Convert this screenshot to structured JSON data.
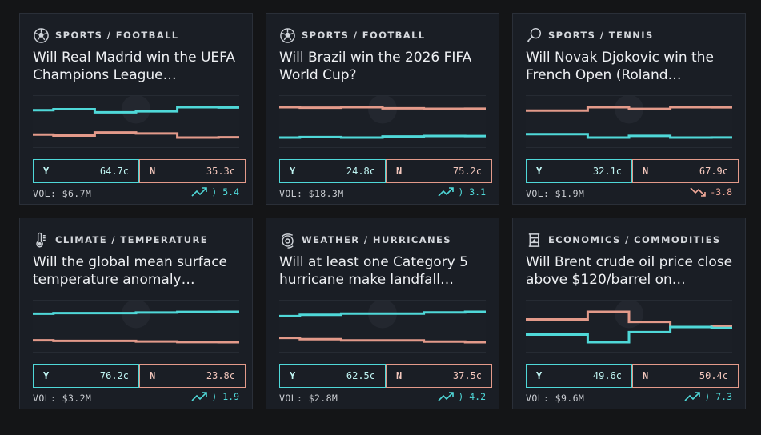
{
  "colors": {
    "background": "#141517",
    "card": "#1a1e25",
    "yes": "#4fd8d8",
    "no": "#e39a8a"
  },
  "markets": [
    {
      "category": "SPORTS / FOOTBALL",
      "icon": "soccer-ball-icon",
      "title": "Will Real Madrid win the UEFA Champions League…",
      "yes_label": "Y",
      "yes_price": "64.7c",
      "no_label": "N",
      "no_price": "35.3c",
      "volume": "VOL: $6.7M",
      "change": ") 5.4",
      "change_dir": "up",
      "history": {
        "yes": [
          0.62,
          0.63,
          0.6,
          0.61,
          0.65,
          0.647
        ],
        "no": [
          0.38,
          0.37,
          0.4,
          0.39,
          0.35,
          0.353
        ]
      }
    },
    {
      "category": "SPORTS / FOOTBALL",
      "icon": "soccer-ball-icon",
      "title": "Will Brazil win the 2026 FIFA World Cup?",
      "yes_label": "Y",
      "yes_price": "24.8c",
      "no_label": "N",
      "no_price": "75.2c",
      "volume": "VOL: $18.3M",
      "change": ") 3.1",
      "change_dir": "up",
      "history": {
        "yes": [
          0.22,
          0.23,
          0.22,
          0.24,
          0.25,
          0.248
        ],
        "no": [
          0.78,
          0.77,
          0.78,
          0.76,
          0.75,
          0.752
        ]
      }
    },
    {
      "category": "SPORTS / TENNIS",
      "icon": "tennis-racket-icon",
      "title": "Will Novak Djokovic win the French Open (Roland…",
      "yes_label": "Y",
      "yes_price": "32.1c",
      "no_label": "N",
      "no_price": "67.9c",
      "volume": "VOL: $1.9M",
      "change": "-3.8",
      "change_dir": "down",
      "history": {
        "yes": [
          0.36,
          0.36,
          0.32,
          0.34,
          0.32,
          0.321
        ],
        "no": [
          0.64,
          0.64,
          0.68,
          0.66,
          0.68,
          0.679
        ]
      }
    },
    {
      "category": "CLIMATE / TEMPERATURE",
      "icon": "thermometer-icon",
      "title": "Will the global mean surface temperature anomaly…",
      "yes_label": "Y",
      "yes_price": "76.2c",
      "no_label": "N",
      "no_price": "23.8c",
      "volume": "VOL: $3.2M",
      "change": ") 1.9",
      "change_dir": "up",
      "history": {
        "yes": [
          0.73,
          0.74,
          0.74,
          0.75,
          0.76,
          0.762
        ],
        "no": [
          0.27,
          0.26,
          0.26,
          0.25,
          0.24,
          0.238
        ]
      }
    },
    {
      "category": "WEATHER / HURRICANES",
      "icon": "hurricane-icon",
      "title": "Will at least one Category 5 hurricane make landfall…",
      "yes_label": "Y",
      "yes_price": "62.5c",
      "no_label": "N",
      "no_price": "37.5c",
      "volume": "VOL: $2.8M",
      "change": ") 4.2",
      "change_dir": "up",
      "history": {
        "yes": [
          0.59,
          0.6,
          0.61,
          0.61,
          0.62,
          0.625
        ],
        "no": [
          0.41,
          0.4,
          0.39,
          0.39,
          0.38,
          0.375
        ]
      }
    },
    {
      "category": "ECONOMICS / COMMODITIES",
      "icon": "oil-barrel-icon",
      "title": "Will Brent crude oil price close above $120/barrel on…",
      "yes_label": "Y",
      "yes_price": "49.6c",
      "no_label": "N",
      "no_price": "50.4c",
      "volume": "VOL: $9.6M",
      "change": ") 7.3",
      "change_dir": "up",
      "history": {
        "yes": [
          0.47,
          0.47,
          0.44,
          0.48,
          0.5,
          0.496
        ],
        "no": [
          0.53,
          0.53,
          0.56,
          0.52,
          0.5,
          0.504
        ]
      }
    }
  ]
}
